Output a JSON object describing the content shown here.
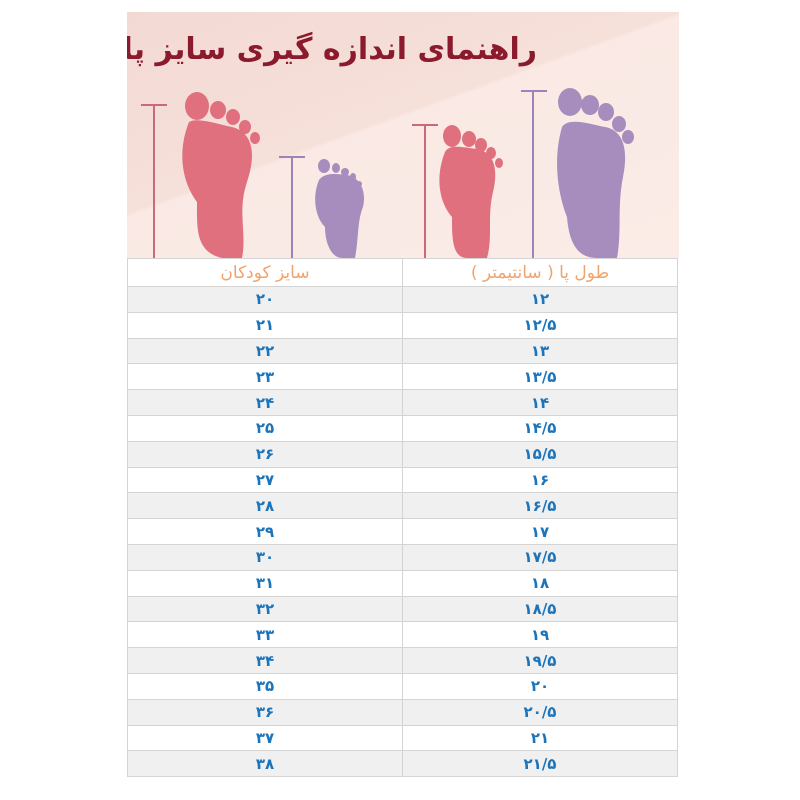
{
  "banner": {
    "title": "راهنمای اندازه گیری سایز پا",
    "colors": {
      "pink_foot": "#e0707e",
      "purple_foot": "#a78dbd",
      "title": "#8a1a2c"
    }
  },
  "table": {
    "headers": {
      "kids_size": "سایز کودکان",
      "foot_length": "طول پا ( سانتیمتر )"
    },
    "rows": [
      {
        "size": "۲۰",
        "length": "۱۲"
      },
      {
        "size": "۲۱",
        "length": "۱۲/۵"
      },
      {
        "size": "۲۲",
        "length": "۱۳"
      },
      {
        "size": "۲۳",
        "length": "۱۳/۵"
      },
      {
        "size": "۲۴",
        "length": "۱۴"
      },
      {
        "size": "۲۵",
        "length": "۱۴/۵"
      },
      {
        "size": "۲۶",
        "length": "۱۵/۵"
      },
      {
        "size": "۲۷",
        "length": "۱۶"
      },
      {
        "size": "۲۸",
        "length": "۱۶/۵"
      },
      {
        "size": "۲۹",
        "length": "۱۷"
      },
      {
        "size": "۳۰",
        "length": "۱۷/۵"
      },
      {
        "size": "۳۱",
        "length": "۱۸"
      },
      {
        "size": "۳۲",
        "length": "۱۸/۵"
      },
      {
        "size": "۳۳",
        "length": "۱۹"
      },
      {
        "size": "۳۴",
        "length": "۱۹/۵"
      },
      {
        "size": "۳۵",
        "length": "۲۰"
      },
      {
        "size": "۳۶",
        "length": "۲۰/۵"
      },
      {
        "size": "۳۷",
        "length": "۲۱"
      },
      {
        "size": "۳۸",
        "length": "۲۱/۵"
      }
    ]
  }
}
